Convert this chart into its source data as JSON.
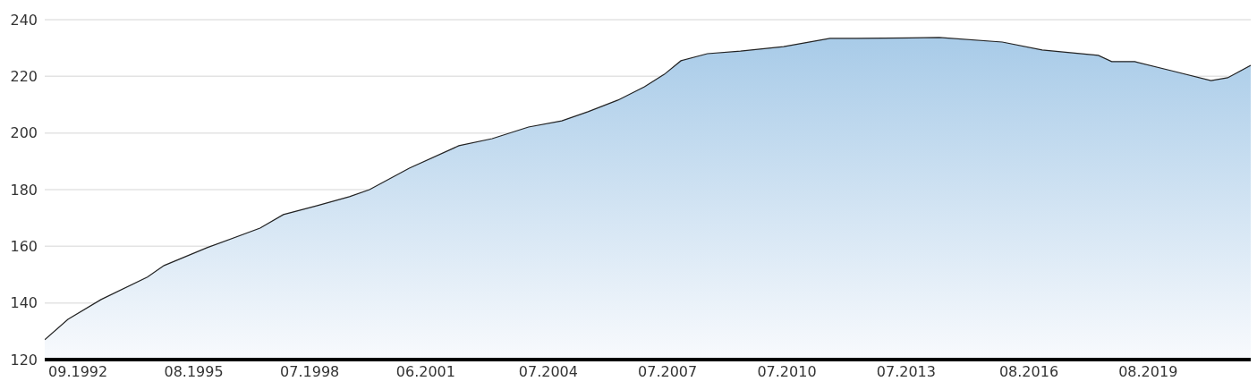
{
  "chart_data": {
    "type": "area",
    "x": [
      "1991-11",
      "1992-06",
      "1993-04",
      "1994-06",
      "1994-11",
      "1995-12",
      "1997-04",
      "1997-11",
      "1998-09",
      "1999-07",
      "2000-01",
      "2001-01",
      "2002-04",
      "2003-02",
      "2004-01",
      "2004-11",
      "2005-07",
      "2006-04",
      "2006-12",
      "2007-06",
      "2007-11",
      "2008-07",
      "2009-05",
      "2010-06",
      "2011-08",
      "2012-04",
      "2014-05",
      "2015-12",
      "2016-12",
      "2018-05",
      "2018-09",
      "2019-04",
      "2020-03",
      "2021-03",
      "2021-08",
      "2022-03"
    ],
    "series": [
      {
        "color": "#a8cbe8",
        "values": [
          127,
          134.2,
          141.2,
          149.1,
          153.2,
          159.5,
          166.4,
          171.2,
          174.3,
          177.5,
          180,
          187.6,
          195.5,
          198,
          202.1,
          204.3,
          207.5,
          211.6,
          216.3,
          220.7,
          225.5,
          228,
          228.9,
          230.5,
          233.4,
          233.4,
          233.7,
          232.1,
          229.3,
          227.4,
          225.2,
          225.2,
          222,
          218.5,
          219.5,
          223.9
        ]
      }
    ],
    "xlim": [
      "1991-11",
      "2022-03"
    ],
    "xticks": [
      {
        "value": "1992-09",
        "label": "09.1992"
      },
      {
        "value": "1995-08",
        "label": "08.1995"
      },
      {
        "value": "1998-07",
        "label": "07.1998"
      },
      {
        "value": "2001-06",
        "label": "06.2001"
      },
      {
        "value": "2004-07",
        "label": "07.2004"
      },
      {
        "value": "2007-07",
        "label": "07.2007"
      },
      {
        "value": "2010-07",
        "label": "07.2010"
      },
      {
        "value": "2013-07",
        "label": "07.2013"
      },
      {
        "value": "2016-08",
        "label": "08.2016"
      },
      {
        "value": "2019-08",
        "label": "08.2019"
      }
    ],
    "ylim": [
      120,
      240
    ],
    "yticks": [
      120,
      140,
      160,
      180,
      200,
      220,
      240
    ],
    "grid": "y",
    "legend": false
  }
}
